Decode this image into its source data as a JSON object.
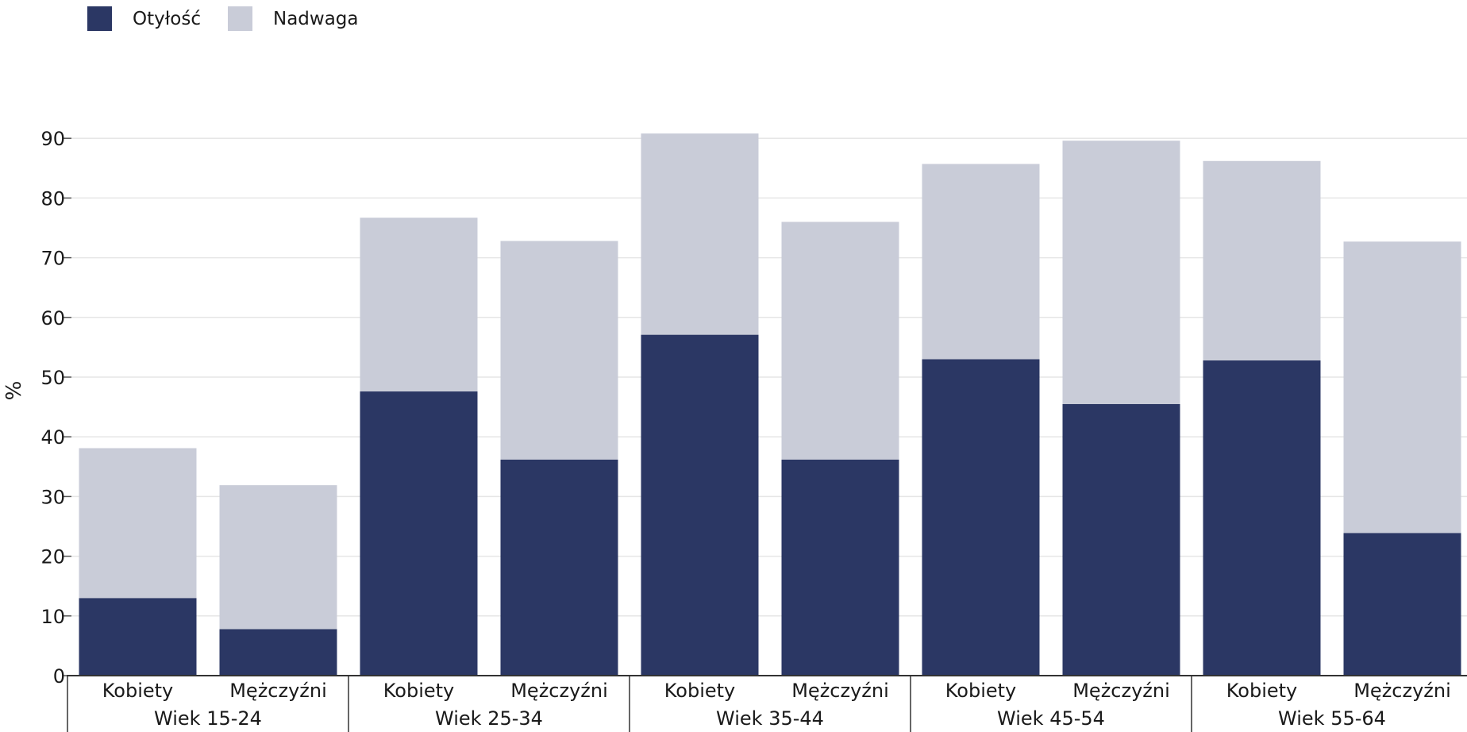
{
  "legend": {
    "items": [
      {
        "label": "Otyłość",
        "color": "#2b3764"
      },
      {
        "label": "Nadwaga",
        "color": "#c9ccd8"
      }
    ]
  },
  "chart_data": {
    "type": "bar",
    "stacked": true,
    "ylabel": "%",
    "ylim": [
      0,
      96
    ],
    "yticks": [
      0,
      10,
      20,
      30,
      40,
      50,
      60,
      70,
      80,
      90
    ],
    "grid": true,
    "legend_position": "top-left",
    "groups": [
      "Wiek 15-24",
      "Wiek 25-34",
      "Wiek 35-44",
      "Wiek 45-54",
      "Wiek 55-64"
    ],
    "categories": [
      "Kobiety",
      "Mężczyźni",
      "Kobiety",
      "Mężczyźni",
      "Kobiety",
      "Mężczyźni",
      "Kobiety",
      "Mężczyźni",
      "Kobiety",
      "Mężczyźni"
    ],
    "series": [
      {
        "name": "Otyłość",
        "color": "#2b3764",
        "values": [
          13,
          7.8,
          47.6,
          36.2,
          57.1,
          36.2,
          53,
          45.5,
          52.8,
          23.9
        ]
      },
      {
        "name": "Nadwaga",
        "color": "#c9ccd8",
        "values": [
          25.1,
          24.1,
          29.1,
          36.6,
          33.7,
          39.8,
          32.7,
          44.1,
          33.4,
          48.8
        ]
      }
    ]
  }
}
